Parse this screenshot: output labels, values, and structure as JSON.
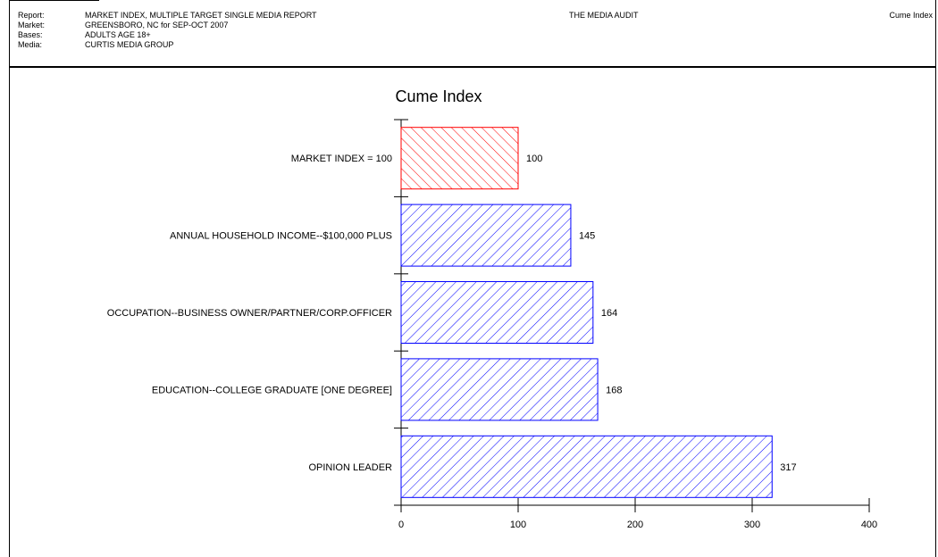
{
  "header": {
    "rows": [
      {
        "label": "Report:",
        "value": "MARKET INDEX, MULTIPLE TARGET SINGLE MEDIA REPORT"
      },
      {
        "label": "Market:",
        "value": "GREENSBORO, NC for SEP-OCT 2007"
      },
      {
        "label": "Bases:",
        "value": "ADULTS AGE 18+"
      },
      {
        "label": "Media:",
        "value": "CURTIS MEDIA GROUP"
      }
    ],
    "center_title": "THE MEDIA AUDIT",
    "right_title": "Cume Index"
  },
  "chart_data": {
    "type": "bar",
    "orientation": "horizontal",
    "title": "Cume Index",
    "categories": [
      "MARKET INDEX = 100",
      "ANNUAL HOUSEHOLD INCOME--$100,000 PLUS",
      "OCCUPATION--BUSINESS OWNER/PARTNER/CORP.OFFICER",
      "EDUCATION--COLLEGE GRADUATE [ONE DEGREE]",
      "OPINION LEADER"
    ],
    "values": [
      100,
      145,
      164,
      168,
      317
    ],
    "value_labels": [
      "100",
      "145",
      "164",
      "168",
      "317"
    ],
    "xlim": [
      0,
      400
    ],
    "xticks": [
      0,
      100,
      200,
      300,
      400
    ],
    "colors": [
      "#ff0000",
      "#0000ff",
      "#0000ff",
      "#0000ff",
      "#0000ff"
    ],
    "fill": "diagonal-hatch",
    "grid": false,
    "legend": "none"
  }
}
